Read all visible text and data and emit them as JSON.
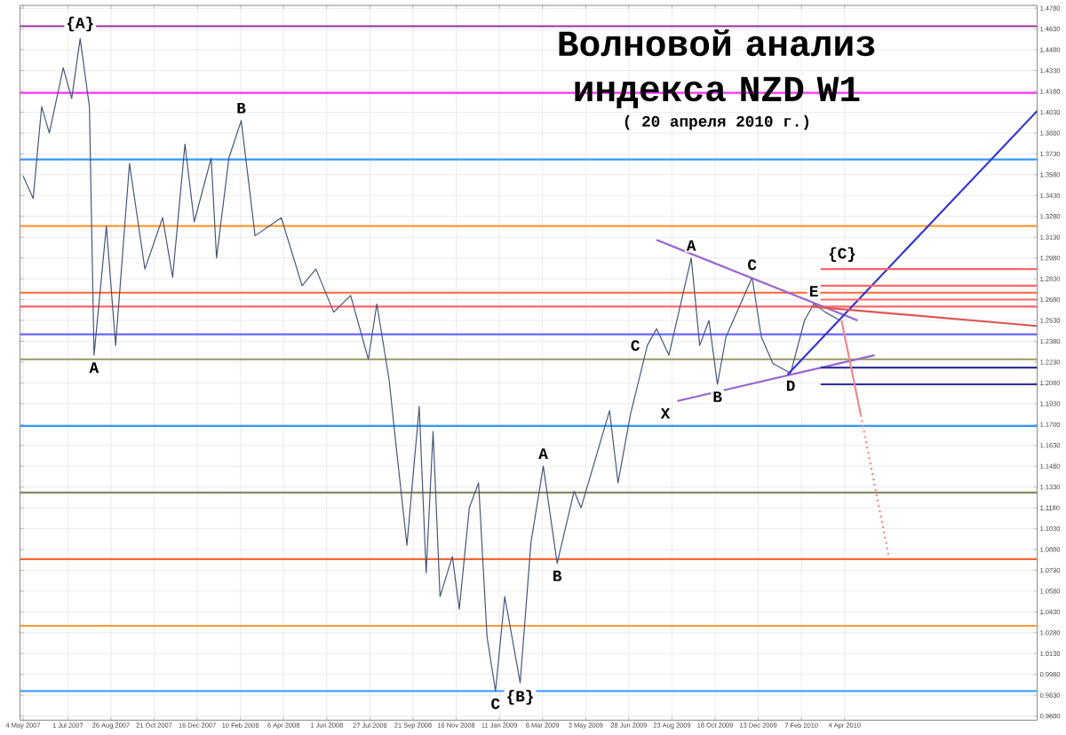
{
  "chart_data": {
    "type": "line",
    "title": "Волновой анализ индекса NZD W1",
    "subtitle": "( 20 апреля 2010 г.)",
    "xlim": [
      "2007-04-30",
      "2010-12-10"
    ],
    "ylim": [
      0.965,
      1.48
    ],
    "xticks": [
      {
        "value": "2007-05-04",
        "label": "4 May 2007"
      },
      {
        "value": "2007-07-01",
        "label": "1 Jul 2007"
      },
      {
        "value": "2007-08-26",
        "label": "26 Aug 2007"
      },
      {
        "value": "2007-10-21",
        "label": "21 Oct 2007"
      },
      {
        "value": "2007-12-16",
        "label": "16 Dec 2007"
      },
      {
        "value": "2008-02-10",
        "label": "10 Feb 2008"
      },
      {
        "value": "2008-04-06",
        "label": "6 Apr 2008"
      },
      {
        "value": "2008-06-01",
        "label": "1 Jun 2008"
      },
      {
        "value": "2008-07-27",
        "label": "27 Jul 2008"
      },
      {
        "value": "2008-09-21",
        "label": "21 Sep 2008"
      },
      {
        "value": "2008-11-16",
        "label": "16 Nov 2008"
      },
      {
        "value": "2009-01-11",
        "label": "11 Jan 2009"
      },
      {
        "value": "2009-03-08",
        "label": "8 Mar 2009"
      },
      {
        "value": "2009-05-03",
        "label": "3 May 2009"
      },
      {
        "value": "2009-06-28",
        "label": "28 Jun 2009"
      },
      {
        "value": "2009-08-23",
        "label": "23 Aug 2009"
      },
      {
        "value": "2009-10-18",
        "label": "18 Oct 2009"
      },
      {
        "value": "2009-12-13",
        "label": "13 Dec 2009"
      },
      {
        "value": "2010-02-07",
        "label": "7 Feb 2010"
      },
      {
        "value": "2010-04-04",
        "label": "4 Apr 2010"
      }
    ],
    "yticks": [
      {
        "value": 0.968,
        "label": "0.9680"
      },
      {
        "value": 0.983,
        "label": "0.9830"
      },
      {
        "value": 0.998,
        "label": "0.9980"
      },
      {
        "value": 1.013,
        "label": "1.0130"
      },
      {
        "value": 1.028,
        "label": "1.0280"
      },
      {
        "value": 1.043,
        "label": "1.0430"
      },
      {
        "value": 1.058,
        "label": "1.0580"
      },
      {
        "value": 1.073,
        "label": "1.0730"
      },
      {
        "value": 1.088,
        "label": "1.0880"
      },
      {
        "value": 1.103,
        "label": "1.1030"
      },
      {
        "value": 1.118,
        "label": "1.1180"
      },
      {
        "value": 1.133,
        "label": "1.1330"
      },
      {
        "value": 1.148,
        "label": "1.1480"
      },
      {
        "value": 1.163,
        "label": "1.1630"
      },
      {
        "value": 1.178,
        "label": "1.1780"
      },
      {
        "value": 1.193,
        "label": "1.1930"
      },
      {
        "value": 1.208,
        "label": "1.2080"
      },
      {
        "value": 1.223,
        "label": "1.2230"
      },
      {
        "value": 1.238,
        "label": "1.2380"
      },
      {
        "value": 1.253,
        "label": "1.2530"
      },
      {
        "value": 1.268,
        "label": "1.2680"
      },
      {
        "value": 1.283,
        "label": "1.2830"
      },
      {
        "value": 1.298,
        "label": "1.2980"
      },
      {
        "value": 1.313,
        "label": "1.3130"
      },
      {
        "value": 1.328,
        "label": "1.3280"
      },
      {
        "value": 1.343,
        "label": "1.3430"
      },
      {
        "value": 1.358,
        "label": "1.3580"
      },
      {
        "value": 1.373,
        "label": "1.3730"
      },
      {
        "value": 1.388,
        "label": "1.3880"
      },
      {
        "value": 1.403,
        "label": "1.4030"
      },
      {
        "value": 1.418,
        "label": "1.4180"
      },
      {
        "value": 1.433,
        "label": "1.4330"
      },
      {
        "value": 1.448,
        "label": "1.4480"
      },
      {
        "value": 1.463,
        "label": "1.4630"
      },
      {
        "value": 1.478,
        "label": "1.4780"
      }
    ],
    "grid": true,
    "series": [
      {
        "color": "#445577",
        "x": [
          "2007-05-04",
          "2007-05-17",
          "2007-05-28",
          "2007-06-07",
          "2007-06-25",
          "2007-07-06",
          "2007-07-17",
          "2007-07-29",
          "2007-08-04",
          "2007-08-20",
          "2007-09-01",
          "2007-09-19",
          "2007-10-09",
          "2007-11-01",
          "2007-11-14",
          "2007-11-30",
          "2007-12-12",
          "2008-01-03",
          "2008-01-10",
          "2008-01-26",
          "2008-02-11",
          "2008-02-29",
          "2008-04-03",
          "2008-04-30",
          "2008-05-18",
          "2008-06-10",
          "2008-07-02",
          "2008-07-25",
          "2008-08-05",
          "2008-08-21",
          "2008-08-28",
          "2008-09-13",
          "2008-09-29",
          "2008-10-08",
          "2008-10-17",
          "2008-10-26",
          "2008-11-11",
          "2008-11-20",
          "2008-12-03",
          "2008-12-15",
          "2008-12-26",
          "2009-01-06",
          "2009-01-18",
          "2009-02-07",
          "2009-02-21",
          "2009-03-09",
          "2009-03-27",
          "2009-04-18",
          "2009-04-27",
          "2009-06-03",
          "2009-06-14",
          "2009-06-30",
          "2009-07-22",
          "2009-08-03",
          "2009-08-19",
          "2009-09-17",
          "2009-09-28",
          "2009-10-10",
          "2009-10-21",
          "2009-11-01",
          "2009-12-05",
          "2009-12-17",
          "2010-01-01",
          "2010-01-24",
          "2010-02-11",
          "2010-02-23",
          "2010-03-10",
          "2010-03-29"
        ],
        "values": [
          1.357,
          1.341,
          1.407,
          1.388,
          1.435,
          1.413,
          1.456,
          1.407,
          1.228,
          1.321,
          1.235,
          1.366,
          1.29,
          1.327,
          1.284,
          1.38,
          1.324,
          1.37,
          1.298,
          1.37,
          1.397,
          1.314,
          1.327,
          1.278,
          1.29,
          1.259,
          1.271,
          1.225,
          1.265,
          1.21,
          1.173,
          1.091,
          1.191,
          1.071,
          1.173,
          1.054,
          1.083,
          1.045,
          1.118,
          1.136,
          1.025,
          0.986,
          1.054,
          0.992,
          1.093,
          1.148,
          1.078,
          1.13,
          1.118,
          1.188,
          1.136,
          1.185,
          1.235,
          1.247,
          1.228,
          1.298,
          1.235,
          1.253,
          1.207,
          1.241,
          1.284,
          1.241,
          1.222,
          1.215,
          1.253,
          1.265,
          1.259,
          1.253
        ]
      },
      {
        "type": "line",
        "color": "#9966cc",
        "x": [
          "2009-08-03",
          "2010-04-21"
        ],
        "values": [
          1.311,
          1.253
        ]
      },
      {
        "type": "line",
        "color": "#9966cc",
        "x": [
          "2009-08-30",
          "2010-05-13"
        ],
        "values": [
          1.195,
          1.228
        ]
      },
      {
        "type": "line",
        "color": "#3333cc",
        "x": [
          "2010-01-20",
          "2010-12-10"
        ],
        "values": [
          1.214,
          1.404
        ]
      },
      {
        "type": "line",
        "color": "#dd5555",
        "x": [
          "2010-02-20",
          "2010-12-10"
        ],
        "values": [
          1.263,
          1.249
        ]
      },
      {
        "type": "line",
        "color": "#ff6666",
        "x": [
          "2010-03-04",
          "2010-12-10"
        ],
        "values": [
          1.29,
          1.29
        ]
      },
      {
        "type": "line",
        "color": "#ff6666",
        "x": [
          "2010-03-04",
          "2010-12-10"
        ],
        "values": [
          1.278,
          1.278
        ]
      },
      {
        "type": "line",
        "color": "#ff6666",
        "x": [
          "2010-03-04",
          "2010-12-10"
        ],
        "values": [
          1.268,
          1.268
        ]
      },
      {
        "type": "line",
        "color": "#333399",
        "x": [
          "2010-03-04",
          "2010-12-10"
        ],
        "values": [
          1.219,
          1.219
        ]
      },
      {
        "type": "line",
        "color": "#333399",
        "x": [
          "2010-03-04",
          "2010-12-10"
        ],
        "values": [
          1.207,
          1.207
        ]
      },
      {
        "type": "line",
        "color": "#ee8888",
        "x": [
          "2010-03-31",
          "2010-04-25"
        ],
        "values": [
          1.253,
          1.185
        ]
      },
      {
        "type": "line",
        "color": "#ee8888",
        "line_style": "dotted",
        "x": [
          "2010-04-25",
          "2010-05-31"
        ],
        "values": [
          1.185,
          1.084
        ]
      }
    ],
    "ref_lines": [
      {
        "axis": "y",
        "value": 1.465,
        "color": "#993399"
      },
      {
        "axis": "y",
        "value": 1.417,
        "color": "#ff33ff"
      },
      {
        "axis": "y",
        "value": 1.369,
        "color": "#3399ff"
      },
      {
        "axis": "y",
        "value": 1.321,
        "color": "#ff9933"
      },
      {
        "axis": "y",
        "value": 1.273,
        "color": "#ff6633"
      },
      {
        "axis": "y",
        "value": 1.263,
        "color": "#ff6666"
      },
      {
        "axis": "y",
        "value": 1.243,
        "color": "#6666ff"
      },
      {
        "axis": "y",
        "value": 1.225,
        "color": "#999966"
      },
      {
        "axis": "y",
        "value": 1.177,
        "color": "#3399ff"
      },
      {
        "axis": "y",
        "value": 1.129,
        "color": "#888866"
      },
      {
        "axis": "y",
        "value": 1.081,
        "color": "#ff6633"
      },
      {
        "axis": "y",
        "value": 1.033,
        "color": "#ff9933"
      },
      {
        "axis": "y",
        "value": 0.986,
        "color": "#3399ff"
      }
    ],
    "annotations": [
      {
        "text": "{A}",
        "x": "2007-07-17",
        "y": 1.456
      },
      {
        "text": "A",
        "x": "2007-08-04",
        "y": 1.228
      },
      {
        "text": "B",
        "x": "2008-02-11",
        "y": 1.397
      },
      {
        "text": "C",
        "x": "2009-01-06",
        "y": 0.986
      },
      {
        "text": "{B}",
        "x": "2009-02-07",
        "y": 0.992
      },
      {
        "text": "A",
        "x": "2009-03-09",
        "y": 1.148
      },
      {
        "text": "B",
        "x": "2009-03-27",
        "y": 1.078
      },
      {
        "text": "C",
        "x": "2009-07-22",
        "y": 1.235
      },
      {
        "text": "X",
        "x": "2009-08-30",
        "y": 1.195
      },
      {
        "text": "A",
        "x": "2009-09-17",
        "y": 1.298
      },
      {
        "text": "B",
        "x": "2009-10-21",
        "y": 1.207
      },
      {
        "text": "C",
        "x": "2009-12-05",
        "y": 1.284
      },
      {
        "text": "D",
        "x": "2010-01-24",
        "y": 1.215
      },
      {
        "text": "E",
        "x": "2010-02-23",
        "y": 1.265
      },
      {
        "text": "{C}",
        "x": "2010-03-04",
        "y": 1.29
      }
    ]
  }
}
